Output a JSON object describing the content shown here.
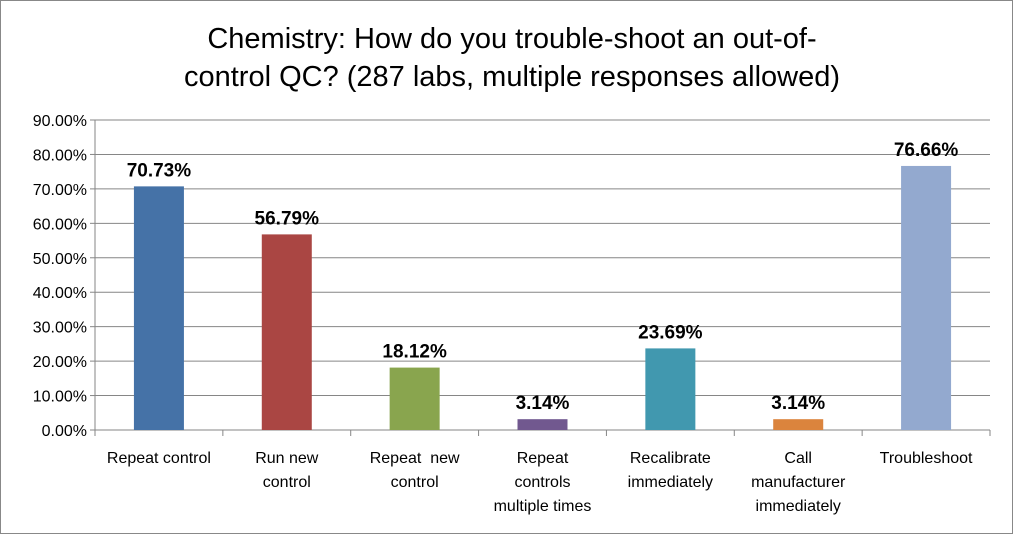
{
  "chart_data": {
    "type": "bar",
    "title": [
      "Chemistry: How do you trouble-shoot an out-of-",
      "control QC? (287 labs, multiple responses allowed)"
    ],
    "categories": [
      [
        "Repeat control"
      ],
      [
        "Run new",
        "control"
      ],
      [
        "Repeat  new",
        "control"
      ],
      [
        "Repeat",
        "controls",
        "multiple times"
      ],
      [
        "Recalibrate",
        "immediately"
      ],
      [
        "Call",
        "manufacturer",
        "immediately"
      ],
      [
        "Troubleshoot"
      ]
    ],
    "values": [
      70.73,
      56.79,
      18.12,
      3.14,
      23.69,
      3.14,
      76.66
    ],
    "data_labels": [
      "70.73%",
      "56.79%",
      "18.12%",
      "3.14%",
      "23.69%",
      "3.14%",
      "76.66%"
    ],
    "colors": [
      "#4572A7",
      "#AA4643",
      "#89A54E",
      "#71588F",
      "#4198AF",
      "#DB843D",
      "#93A9CF"
    ],
    "ylim": [
      0,
      90
    ],
    "yticks": [
      "0.00%",
      "10.00%",
      "20.00%",
      "30.00%",
      "40.00%",
      "50.00%",
      "60.00%",
      "70.00%",
      "80.00%",
      "90.00%"
    ],
    "grid": true,
    "legend": "none",
    "xlabel": "",
    "ylabel": ""
  }
}
